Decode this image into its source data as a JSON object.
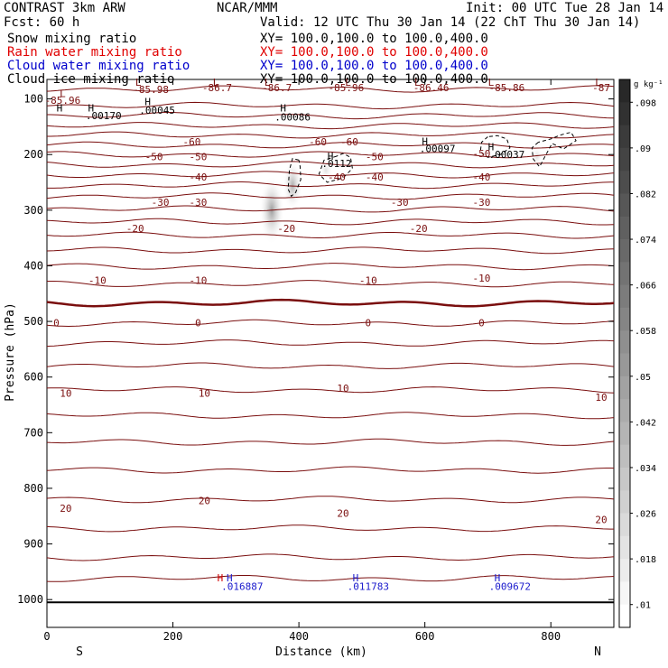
{
  "header": {
    "model": "CONTRAST  3km ARW",
    "center": "NCAR/MMM",
    "init": "Init: 00 UTC Tue 28 Jan 14",
    "fcst": "Fcst:   60 h",
    "valid": "Valid: 12 UTC Thu 30 Jan 14 (22 ChT Thu 30 Jan 14)"
  },
  "legend": [
    {
      "name": "Snow mixing ratio",
      "xy": "XY= 100.0,100.0 to 100.0,400.0",
      "color": "#000000"
    },
    {
      "name": "Rain water mixing ratio",
      "xy": "XY= 100.0,100.0 to 100.0,400.0",
      "color": "#e00000"
    },
    {
      "name": "Cloud water mixing ratio",
      "xy": "XY= 100.0,100.0 to 100.0,400.0",
      "color": "#0000cc"
    },
    {
      "name": "Cloud ice mixing ratio",
      "xy": "XY= 100.0,100.0 to 100.0,400.0",
      "color": "#000000"
    }
  ],
  "colors": {
    "isotherm": "#7a0e0e",
    "frame": "#000000",
    "cloud_water": "#1a1acc",
    "rain": "#d00000"
  },
  "chart_data": {
    "type": "cross-section",
    "xlabel": "Distance (km)",
    "ylabel": "Pressure (hPa)",
    "xlim": [
      0,
      900
    ],
    "ylim": [
      1050,
      65
    ],
    "x_ticks": [
      0,
      200,
      400,
      600,
      800
    ],
    "y_ticks": [
      100,
      200,
      300,
      400,
      500,
      600,
      700,
      800,
      900,
      1000
    ],
    "x_end_labels": {
      "left": "S",
      "right": "N"
    },
    "colorbar": {
      "unit": "g kg⁻¹",
      "ticks": [
        ".098",
        ".09",
        ".082",
        ".074",
        ".066",
        ".058",
        ".05",
        ".042",
        ".034",
        ".026",
        ".018",
        ".01"
      ],
      "tick_values": [
        0.098,
        0.09,
        0.082,
        0.074,
        0.066,
        0.058,
        0.05,
        0.042,
        0.034,
        0.026,
        0.018,
        0.01
      ],
      "range": [
        0.006,
        0.102
      ]
    },
    "isotherms": [
      {
        "temp": -85,
        "p": 82
      },
      {
        "temp": -80,
        "p": 112
      },
      {
        "temp": -75,
        "p": 130
      },
      {
        "temp": -70,
        "p": 148
      },
      {
        "temp": -65,
        "p": 165
      },
      {
        "temp": -60,
        "p": 183
      },
      {
        "temp": -55,
        "p": 200
      },
      {
        "temp": -50,
        "p": 218
      },
      {
        "temp": -45,
        "p": 236
      },
      {
        "temp": -40,
        "p": 255
      },
      {
        "temp": -35,
        "p": 275
      },
      {
        "temp": -30,
        "p": 298
      },
      {
        "temp": -25,
        "p": 321
      },
      {
        "temp": -20,
        "p": 345
      },
      {
        "temp": -15,
        "p": 372
      },
      {
        "temp": -10,
        "p": 401
      },
      {
        "temp": -5,
        "p": 432
      },
      {
        "temp": 0,
        "p": 467
      },
      {
        "temp": 5,
        "p": 503
      },
      {
        "temp": 10,
        "p": 539
      },
      {
        "temp": 15,
        "p": 580
      },
      {
        "temp": 20,
        "p": 623
      },
      {
        "temp": 25,
        "p": 669
      },
      {
        "temp": 30,
        "p": 717
      },
      {
        "temp": 35,
        "p": 767
      },
      {
        "temp": 40,
        "p": 820
      },
      {
        "temp": 45,
        "p": 872
      },
      {
        "temp": 50,
        "p": 924
      },
      {
        "temp": 55,
        "p": 962
      }
    ],
    "contour_labels": [
      {
        "text": "-85.96",
        "x": 25,
        "p": 102
      },
      {
        "text": "-85.98",
        "x": 165,
        "p": 83
      },
      {
        "text": "-86.7",
        "x": 270,
        "p": 80
      },
      {
        "text": "-86.7",
        "x": 365,
        "p": 80
      },
      {
        "text": "-85.96",
        "x": 475,
        "p": 80
      },
      {
        "text": "-86.46",
        "x": 610,
        "p": 80
      },
      {
        "text": "-85.86",
        "x": 730,
        "p": 80
      },
      {
        "text": "-87",
        "x": 880,
        "p": 80
      },
      {
        "text": "-60",
        "x": 230,
        "p": 177
      },
      {
        "text": "-60",
        "x": 430,
        "p": 177
      },
      {
        "text": "-60",
        "x": 480,
        "p": 177
      },
      {
        "text": "-50",
        "x": 170,
        "p": 204
      },
      {
        "text": "-50",
        "x": 240,
        "p": 204
      },
      {
        "text": "-50",
        "x": 520,
        "p": 204
      },
      {
        "text": "-50",
        "x": 690,
        "p": 198
      },
      {
        "text": "-40",
        "x": 240,
        "p": 240
      },
      {
        "text": "-40",
        "x": 460,
        "p": 240
      },
      {
        "text": "-40",
        "x": 520,
        "p": 240
      },
      {
        "text": "-40",
        "x": 690,
        "p": 240
      },
      {
        "text": "-30",
        "x": 180,
        "p": 286
      },
      {
        "text": "-30",
        "x": 240,
        "p": 286
      },
      {
        "text": "-30",
        "x": 560,
        "p": 286
      },
      {
        "text": "-30",
        "x": 690,
        "p": 286
      },
      {
        "text": "-20",
        "x": 140,
        "p": 333
      },
      {
        "text": "-20",
        "x": 380,
        "p": 333
      },
      {
        "text": "-20",
        "x": 590,
        "p": 333
      },
      {
        "text": "-10",
        "x": 80,
        "p": 426
      },
      {
        "text": "-10",
        "x": 240,
        "p": 426
      },
      {
        "text": "-10",
        "x": 510,
        "p": 426
      },
      {
        "text": "-10",
        "x": 690,
        "p": 422
      },
      {
        "text": "0",
        "x": 15,
        "p": 502
      },
      {
        "text": "0",
        "x": 240,
        "p": 502
      },
      {
        "text": "0",
        "x": 510,
        "p": 502
      },
      {
        "text": "0",
        "x": 690,
        "p": 502
      },
      {
        "text": "10",
        "x": 30,
        "p": 629
      },
      {
        "text": "10",
        "x": 250,
        "p": 629
      },
      {
        "text": "10",
        "x": 470,
        "p": 620
      },
      {
        "text": "10",
        "x": 880,
        "p": 636
      },
      {
        "text": "20",
        "x": 30,
        "p": 836
      },
      {
        "text": "20",
        "x": 250,
        "p": 822
      },
      {
        "text": "20",
        "x": 470,
        "p": 845
      },
      {
        "text": "20",
        "x": 880,
        "p": 856
      }
    ],
    "extrema": [
      {
        "mark": "L",
        "x": 25,
        "p": 90
      },
      {
        "mark": "L",
        "x": 145,
        "p": 70
      },
      {
        "mark": "L",
        "x": 268,
        "p": 70
      },
      {
        "mark": "L",
        "x": 350,
        "p": 70
      },
      {
        "mark": "L",
        "x": 478,
        "p": 70
      },
      {
        "mark": "L",
        "x": 588,
        "p": 70
      },
      {
        "mark": "L",
        "x": 705,
        "p": 70
      },
      {
        "mark": "L",
        "x": 875,
        "p": 70
      },
      {
        "mark": "H",
        "x": 20,
        "p": 116
      },
      {
        "mark": "H",
        "x": 70,
        "p": 116
      },
      {
        "mark": "H",
        "x": 160,
        "p": 105
      },
      {
        "mark": "H",
        "x": 375,
        "p": 116
      },
      {
        "mark": "H",
        "x": 450,
        "p": 203
      },
      {
        "mark": "H",
        "x": 600,
        "p": 176
      },
      {
        "mark": "H",
        "x": 705,
        "p": 186
      }
    ],
    "extrema_values": [
      {
        "text": ".00170",
        "x": 90,
        "p": 130
      },
      {
        "text": ".00045",
        "x": 175,
        "p": 120
      },
      {
        "text": ".00086",
        "x": 390,
        "p": 132
      },
      {
        "text": ".0112",
        "x": 460,
        "p": 216
      },
      {
        "text": ".00097",
        "x": 620,
        "p": 189
      },
      {
        "text": ".00037",
        "x": 730,
        "p": 200
      }
    ],
    "low_level": [
      {
        "mark": "H",
        "x": 275,
        "p": 961,
        "color": "#d00000"
      },
      {
        "mark": "H",
        "x": 290,
        "p": 961,
        "color": "#1a1acc"
      },
      {
        "mark": "H",
        "x": 490,
        "p": 961,
        "color": "#1a1acc"
      },
      {
        "mark": "H",
        "x": 715,
        "p": 961,
        "color": "#1a1acc"
      }
    ],
    "low_level_values": [
      {
        "text": ".016887",
        "x": 310,
        "p": 976,
        "color": "#1a1acc"
      },
      {
        "text": ".011783",
        "x": 510,
        "p": 976,
        "color": "#1a1acc"
      },
      {
        "text": ".009672",
        "x": 735,
        "p": 976,
        "color": "#1a1acc"
      }
    ],
    "shaded_cells": [
      {
        "x": 357,
        "p": 300,
        "peak": 0.05,
        "rx": 14,
        "rp": 38
      },
      {
        "x": 390,
        "p": 255,
        "peak": 0.042,
        "rx": 11,
        "rp": 28
      },
      {
        "x": 443,
        "p": 228,
        "peak": 0.02,
        "rx": 8,
        "rp": 12
      },
      {
        "x": 778,
        "p": 203,
        "peak": 0.022,
        "rx": 6,
        "rp": 10
      },
      {
        "x": 590,
        "p": 345,
        "peak": 0.012,
        "rx": 6,
        "rp": 5
      }
    ],
    "dashed_contours": [
      [
        [
          400,
          210
        ],
        [
          390,
          207
        ],
        [
          385,
          228
        ],
        [
          383,
          262
        ],
        [
          388,
          275
        ],
        [
          395,
          268
        ],
        [
          403,
          245
        ],
        [
          402,
          222
        ],
        [
          400,
          210
        ]
      ],
      [
        [
          460,
          203
        ],
        [
          440,
          210
        ],
        [
          432,
          235
        ],
        [
          445,
          250
        ],
        [
          470,
          242
        ],
        [
          485,
          225
        ],
        [
          482,
          205
        ],
        [
          470,
          198
        ],
        [
          460,
          203
        ]
      ],
      [
        [
          700,
          168
        ],
        [
          690,
          178
        ],
        [
          688,
          195
        ],
        [
          700,
          205
        ],
        [
          720,
          200
        ],
        [
          735,
          188
        ],
        [
          730,
          172
        ],
        [
          715,
          166
        ],
        [
          700,
          168
        ]
      ],
      [
        [
          780,
          178
        ],
        [
          770,
          188
        ],
        [
          772,
          208
        ],
        [
          782,
          222
        ],
        [
          790,
          205
        ],
        [
          802,
          180
        ],
        [
          820,
          190
        ],
        [
          840,
          175
        ],
        [
          832,
          160
        ],
        [
          815,
          165
        ],
        [
          800,
          172
        ],
        [
          780,
          178
        ]
      ]
    ]
  }
}
